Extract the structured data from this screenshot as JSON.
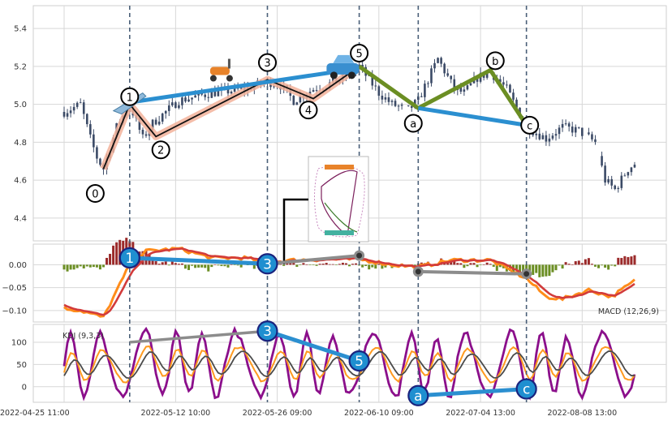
{
  "colors": {
    "grid": "#d7d7d7",
    "frame": "#cfcfcf",
    "candle": "#3b4a66",
    "vline": "#4a5f78",
    "wave_black": "#111111",
    "wave_band": "#f2b29a",
    "trend_blue": "#2b8fd0",
    "trend_green": "#6b8e23",
    "macd_line": "#ff8c1a",
    "signal_line": "#d23b3b",
    "hist_pos": "#9b2a2a",
    "hist_neg": "#6b8e23",
    "k_line": "#ff9a1f",
    "d_line": "#4a4a4a",
    "j_line": "#8b0f8b",
    "connector_gray": "#8c8c8c",
    "circle_blue": "#1f8fd0",
    "circle_border": "#1a237e"
  },
  "chart_data": [
    {
      "type": "candlestick",
      "ylim": [
        4.28,
        5.52
      ],
      "y_ticks": [
        "4.4",
        "4.6",
        "4.8",
        "5.0",
        "5.2",
        "5.4"
      ],
      "x_tick_labels": [
        "2022-04-25 11:00",
        "2022-05-12 10:00",
        "2022-05-26 09:00",
        "2022-06-10 09:00",
        "2022-07-04 13:00",
        "2022-08-08 13:00"
      ],
      "x_tick_bars": [
        0,
        34,
        65,
        96,
        127,
        158
      ],
      "n_bars": 175,
      "vertical_marker_bars": [
        20,
        62,
        90,
        108,
        141
      ],
      "price_anchors": [
        [
          0,
          4.96
        ],
        [
          5,
          5.0
        ],
        [
          8,
          4.82
        ],
        [
          10,
          4.72
        ],
        [
          12,
          4.66
        ],
        [
          16,
          4.88
        ],
        [
          20,
          5.0
        ],
        [
          24,
          4.82
        ],
        [
          27,
          4.9
        ],
        [
          35,
          5.02
        ],
        [
          45,
          5.06
        ],
        [
          55,
          5.08
        ],
        [
          62,
          5.12
        ],
        [
          66,
          5.1
        ],
        [
          70,
          5.02
        ],
        [
          76,
          5.08
        ],
        [
          83,
          5.12
        ],
        [
          90,
          5.2
        ],
        [
          96,
          5.06
        ],
        [
          100,
          5.0
        ],
        [
          105,
          4.97
        ],
        [
          108,
          5.02
        ],
        [
          114,
          5.24
        ],
        [
          119,
          5.08
        ],
        [
          122,
          5.06
        ],
        [
          126,
          5.14
        ],
        [
          130,
          5.17
        ],
        [
          135,
          5.08
        ],
        [
          141,
          4.88
        ],
        [
          147,
          4.82
        ],
        [
          152,
          4.88
        ],
        [
          157,
          4.86
        ],
        [
          162,
          4.8
        ],
        [
          165,
          4.6
        ],
        [
          168,
          4.55
        ],
        [
          172,
          4.66
        ],
        [
          175,
          4.7
        ]
      ],
      "elliott_labels": [
        "0",
        "1",
        "2",
        "3",
        "4",
        "5",
        "a",
        "b",
        "c"
      ],
      "elliott_points": [
        [
          12,
          4.66
        ],
        [
          20,
          5.0
        ],
        [
          28,
          4.83
        ],
        [
          62,
          5.13
        ],
        [
          76,
          5.03
        ],
        [
          90,
          5.2
        ],
        [
          108,
          4.99
        ],
        [
          130,
          5.18
        ],
        [
          141,
          4.88
        ]
      ],
      "label_positions": [
        [
          9.5,
          4.53
        ],
        [
          20,
          5.04
        ],
        [
          29.5,
          4.76
        ],
        [
          62,
          5.22
        ],
        [
          74.5,
          4.97
        ],
        [
          90,
          5.27
        ],
        [
          106.5,
          4.9
        ],
        [
          131.5,
          5.23
        ],
        [
          142,
          4.89
        ]
      ],
      "trend_blue_1": [
        [
          20,
          5.01
        ],
        [
          90,
          5.19
        ]
      ],
      "trend_green": [
        [
          90,
          5.2
        ],
        [
          108,
          4.98
        ],
        [
          130,
          5.18
        ],
        [
          141,
          4.89
        ]
      ],
      "trend_blue_2": [
        [
          108,
          4.98
        ],
        [
          141,
          4.89
        ]
      ]
    },
    {
      "type": "line",
      "series_label": "MACD (12,26,9)",
      "ylim": [
        -0.125,
        0.045
      ],
      "y_ticks": [
        "−0.10",
        "−0.05",
        "0.00"
      ],
      "markers": [
        {
          "label": "1",
          "bar": 20,
          "value": 0.015
        },
        {
          "label": "3",
          "bar": 62,
          "value": 0.002
        }
      ],
      "gray_links": [
        [
          [
            62,
            0.002
          ],
          [
            90,
            0.02
          ]
        ],
        [
          [
            108,
            -0.015
          ],
          [
            141,
            -0.02
          ]
        ]
      ]
    },
    {
      "type": "line",
      "series_label": "KDJ (9,3,3)",
      "ylim": [
        -35,
        140
      ],
      "y_ticks": [
        "0",
        "50",
        "100"
      ],
      "markers": [
        {
          "label": "3",
          "bar": 62,
          "value": 125
        },
        {
          "label": "5",
          "bar": 90,
          "value": 58
        },
        {
          "label": "a",
          "bar": 108,
          "value": -20
        },
        {
          "label": "c",
          "bar": 141,
          "value": -5
        }
      ],
      "gray_link": [
        [
          20,
          100
        ],
        [
          62,
          125
        ]
      ]
    }
  ]
}
